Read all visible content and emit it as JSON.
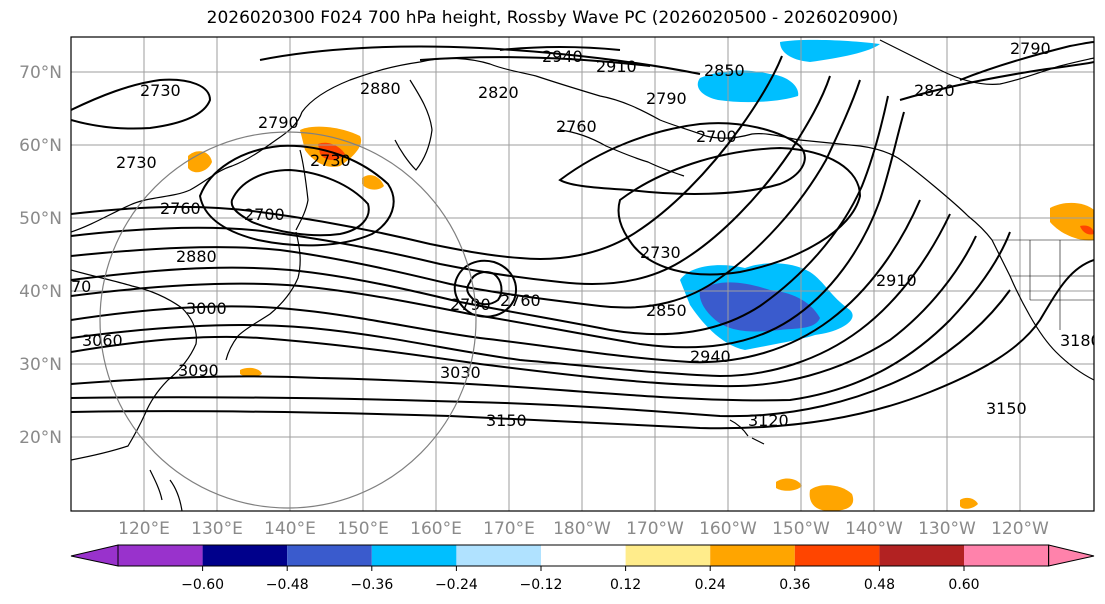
{
  "title": "2026020300 F024 700 hPa height, Rossby Wave PC (2026020500 - 2026020900)",
  "map": {
    "lat_labels": [
      "70°N",
      "60°N",
      "50°N",
      "40°N",
      "30°N",
      "20°N"
    ],
    "lon_labels": [
      "120°E",
      "130°E",
      "140°E",
      "150°E",
      "160°E",
      "170°E",
      "180°W",
      "170°W",
      "160°W",
      "150°W",
      "140°W",
      "130°W",
      "120°W"
    ],
    "contour_labels": [
      "2940",
      "2910",
      "2850",
      "2790",
      "2880",
      "2820",
      "2760",
      "2700",
      "2730",
      "2790",
      "2730",
      "2730",
      "2760",
      "2700",
      "2880",
      "3000",
      "3060",
      "3090",
      "3030",
      "3150",
      "3120",
      "2730",
      "2850",
      "2940",
      "2910",
      "2790",
      "2760",
      "3180",
      "3150",
      "2790",
      "2820",
      "70"
    ],
    "colors": {
      "contour": "#000000",
      "coast": "#000000",
      "grid": "#9e9e9e",
      "circle": "#808080"
    }
  },
  "colorbar": {
    "tick_labels": [
      "−0.60",
      "−0.48",
      "−0.36",
      "−0.24",
      "−0.12",
      "0.12",
      "0.24",
      "0.36",
      "0.48",
      "0.60"
    ],
    "colors": [
      "#9932cc",
      "#00008b",
      "#3a5bcd",
      "#00bfff",
      "#b0e2ff",
      "#ffffff",
      "#ffec8b",
      "#ffa500",
      "#ff4500",
      "#b22222",
      "#ff82ab"
    ]
  }
}
